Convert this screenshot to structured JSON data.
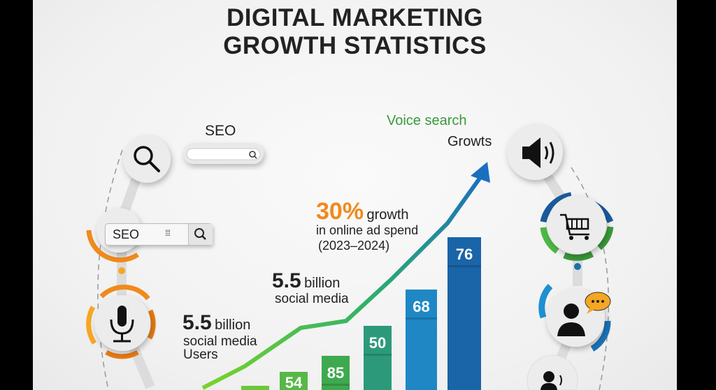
{
  "title_lines": [
    "DIGITAL MARKETING",
    "GROWTH STATISTICS"
  ],
  "left": {
    "seo_label": "SEO",
    "seo_box_text": "SEO"
  },
  "annotations": {
    "voice_search": "Voice search",
    "growts": "Growts",
    "growth_pct": "30%",
    "growth_word": "growth",
    "ad_spend": "in online ad spend",
    "years": "(2023–2024)",
    "mid_number": "5.5",
    "mid_unit": "billion",
    "mid_desc": "social media",
    "low_number": "5.5",
    "low_unit": "billion",
    "low_desc1": "social media",
    "low_desc2": "Users"
  },
  "icons": [
    "search-icon",
    "microphone-icon",
    "speaker-icon",
    "shopping-cart-icon",
    "person-chat-icon",
    "person-audio-icon"
  ],
  "colors": {
    "orange": "#f08a1c",
    "green": "#4cb944",
    "blue": "#1a72b8",
    "dark_blue": "#15528f",
    "voice_green": "#3a9a3a"
  },
  "chart_data": {
    "type": "bar",
    "categories": [
      "",
      "",
      "",
      "",
      "",
      ""
    ],
    "values": [
      null,
      54,
      85,
      50,
      68,
      76
    ],
    "data_labels": [
      "",
      "54",
      "85",
      "50",
      "68",
      "76"
    ],
    "trend_line": "rising arrow",
    "colors": [
      "#6cc83a",
      "#56b845",
      "#3ea94e",
      "#2c9a7a",
      "#1f88c4",
      "#1a64a8"
    ]
  }
}
